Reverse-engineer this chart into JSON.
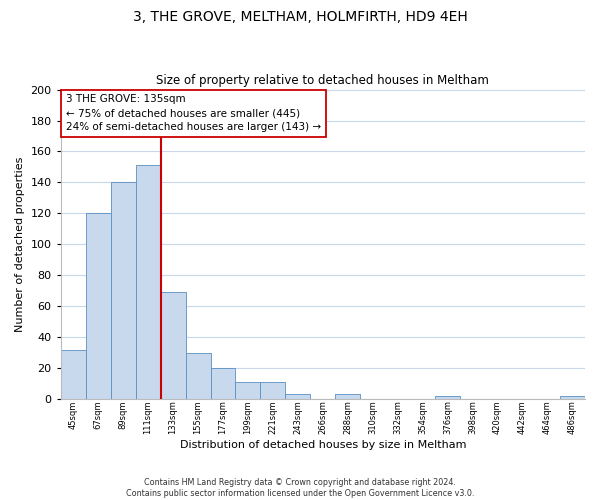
{
  "title": "3, THE GROVE, MELTHAM, HOLMFIRTH, HD9 4EH",
  "subtitle": "Size of property relative to detached houses in Meltham",
  "xlabel": "Distribution of detached houses by size in Meltham",
  "ylabel": "Number of detached properties",
  "bin_labels": [
    "45sqm",
    "67sqm",
    "89sqm",
    "111sqm",
    "133sqm",
    "155sqm",
    "177sqm",
    "199sqm",
    "221sqm",
    "243sqm",
    "266sqm",
    "288sqm",
    "310sqm",
    "332sqm",
    "354sqm",
    "376sqm",
    "398sqm",
    "420sqm",
    "442sqm",
    "464sqm",
    "486sqm"
  ],
  "bar_values": [
    32,
    120,
    140,
    151,
    69,
    30,
    20,
    11,
    11,
    3,
    0,
    3,
    0,
    0,
    0,
    2,
    0,
    0,
    0,
    0,
    2
  ],
  "bar_color": "#c8d9ee",
  "bar_edge_color": "#5a8fc2",
  "ylim": [
    0,
    200
  ],
  "yticks": [
    0,
    20,
    40,
    60,
    80,
    100,
    120,
    140,
    160,
    180,
    200
  ],
  "property_line_idx": 4,
  "property_line_color": "#cc0000",
  "annotation_text": "3 THE GROVE: 135sqm\n← 75% of detached houses are smaller (445)\n24% of semi-detached houses are larger (143) →",
  "annotation_box_color": "#ffffff",
  "annotation_box_edge": "#cc0000",
  "footer_text": "Contains HM Land Registry data © Crown copyright and database right 2024.\nContains public sector information licensed under the Open Government Licence v3.0.",
  "background_color": "#ffffff",
  "grid_color": "#c8d8e8"
}
